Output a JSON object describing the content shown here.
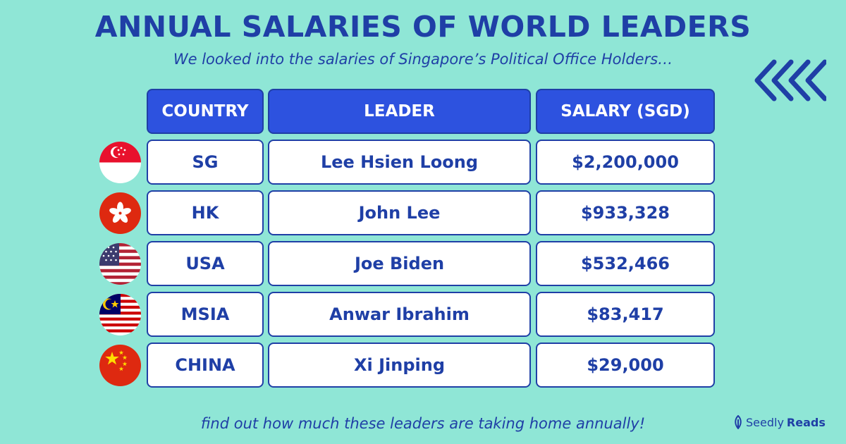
{
  "title": "ANNUAL SALARIES OF WORLD LEADERS",
  "subtitle": "We looked into the salaries of Singapore’s Political Office Holders…",
  "table": {
    "headers": [
      "COUNTRY",
      "LEADER",
      "SALARY (SGD)"
    ],
    "rows": [
      {
        "country": "SG",
        "leader": "Lee Hsien Loong",
        "salary": "$2,200,000",
        "flag": "singapore-flag-icon"
      },
      {
        "country": "HK",
        "leader": "John Lee",
        "salary": "$933,328",
        "flag": "hong-kong-flag-icon"
      },
      {
        "country": "USA",
        "leader": "Joe Biden",
        "salary": "$532,466",
        "flag": "usa-flag-icon"
      },
      {
        "country": "MSIA",
        "leader": "Anwar Ibrahim",
        "salary": "$83,417",
        "flag": "malaysia-flag-icon"
      },
      {
        "country": "CHINA",
        "leader": "Xi Jinping",
        "salary": "$29,000",
        "flag": "china-flag-icon"
      }
    ]
  },
  "footer": "find out how much these leaders are taking home annually!",
  "brand": {
    "name": "Seedly",
    "suffix": "Reads"
  },
  "colors": {
    "background": "#8fe6d6",
    "accent": "#1f3fa6",
    "header": "#2d52df"
  }
}
